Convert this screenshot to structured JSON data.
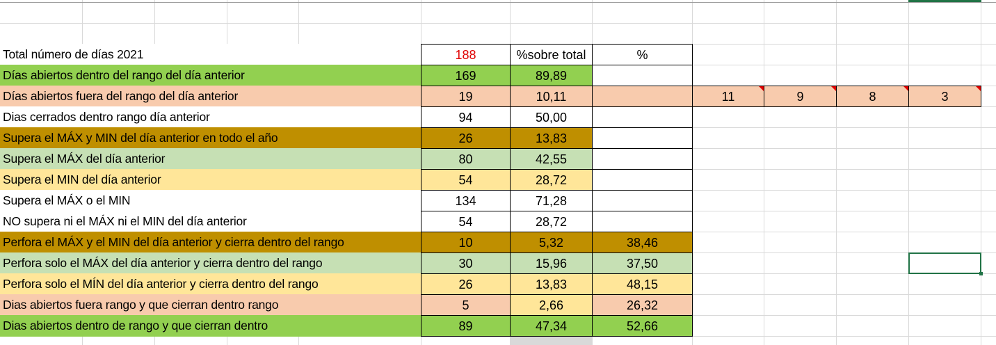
{
  "colors": {
    "green": "#92d050",
    "salmon": "#f8cbad",
    "gold": "#bf8f00",
    "lightgreen": "#c6e0b4",
    "yellow": "#ffe699",
    "white": "#ffffff",
    "red_text": "#e00000",
    "selection": "#217346"
  },
  "header": {
    "label": "Total número de días  2021",
    "count": "188",
    "pct_total": "%sobre total",
    "pct": "%"
  },
  "rows": [
    {
      "label": "Días abiertos dentro del rango del día anterior",
      "count": "169",
      "pct_total": "89,89",
      "pct": "",
      "fill": [
        "green",
        "green",
        "green",
        "white"
      ]
    },
    {
      "label": "Días abiertos fuera del rango del día anterior",
      "count": "19",
      "pct_total": "10,11",
      "pct": "",
      "fill": [
        "salmon",
        "salmon",
        "salmon",
        "salmon"
      ],
      "extra": [
        "11",
        "9",
        "8",
        "3"
      ]
    },
    {
      "label": "Dias cerrados dentro rango día anterior",
      "count": "94",
      "pct_total": "50,00",
      "pct": "",
      "fill": [
        "white",
        "white",
        "white",
        "white"
      ]
    },
    {
      "label": "Supera el MÁX y MIN del día anterior en todo el año",
      "count": "26",
      "pct_total": "13,83",
      "pct": "",
      "fill": [
        "gold",
        "gold",
        "gold",
        "white"
      ]
    },
    {
      "label": "Supera el MÁX  del día anterior",
      "count": "80",
      "pct_total": "42,55",
      "pct": "",
      "fill": [
        "lightgreen",
        "lightgreen",
        "lightgreen",
        "white"
      ]
    },
    {
      "label": "Supera el MIN del día anterior",
      "count": "54",
      "pct_total": "28,72",
      "pct": "",
      "fill": [
        "yellow",
        "yellow",
        "yellow",
        "white"
      ]
    },
    {
      "label": "Supera el MÁX o el MIN",
      "count": "134",
      "pct_total": "71,28",
      "pct": "",
      "fill": [
        "white",
        "white",
        "white",
        "white"
      ]
    },
    {
      "label": "NO supera ni el MÁX ni el MIN del día anterior",
      "count": "54",
      "pct_total": "28,72",
      "pct": "",
      "fill": [
        "white",
        "white",
        "white",
        "white"
      ]
    },
    {
      "label": "Perfora el MÁX y el MIN del día anterior y cierra dentro del rango",
      "count": "10",
      "pct_total": "5,32",
      "pct": "38,46",
      "fill": [
        "gold",
        "gold",
        "gold",
        "gold"
      ]
    },
    {
      "label": "Perfora  solo el MÁX  del día anterior y cierra dentro del rango",
      "count": "30",
      "pct_total": "15,96",
      "pct": "37,50",
      "fill": [
        "lightgreen",
        "lightgreen",
        "lightgreen",
        "lightgreen"
      ]
    },
    {
      "label": "Perfora  solo  el MÍN del día anterior y cierra dentro del rango",
      "count": "26",
      "pct_total": "13,83",
      "pct": "48,15",
      "fill": [
        "yellow",
        "yellow",
        "yellow",
        "yellow"
      ]
    },
    {
      "label": "Dias abiertos fuera rango y que cierran dentro rango",
      "count": "5",
      "pct_total": "2,66",
      "pct": "26,32",
      "fill": [
        "salmon",
        "salmon",
        "yellow",
        "salmon"
      ]
    },
    {
      "label": "Dias abiertos dentro de rango y que cierran dentro",
      "count": "89",
      "pct_total": "47,34",
      "pct": "52,66",
      "fill": [
        "green",
        "green",
        "green",
        "green"
      ]
    }
  ]
}
